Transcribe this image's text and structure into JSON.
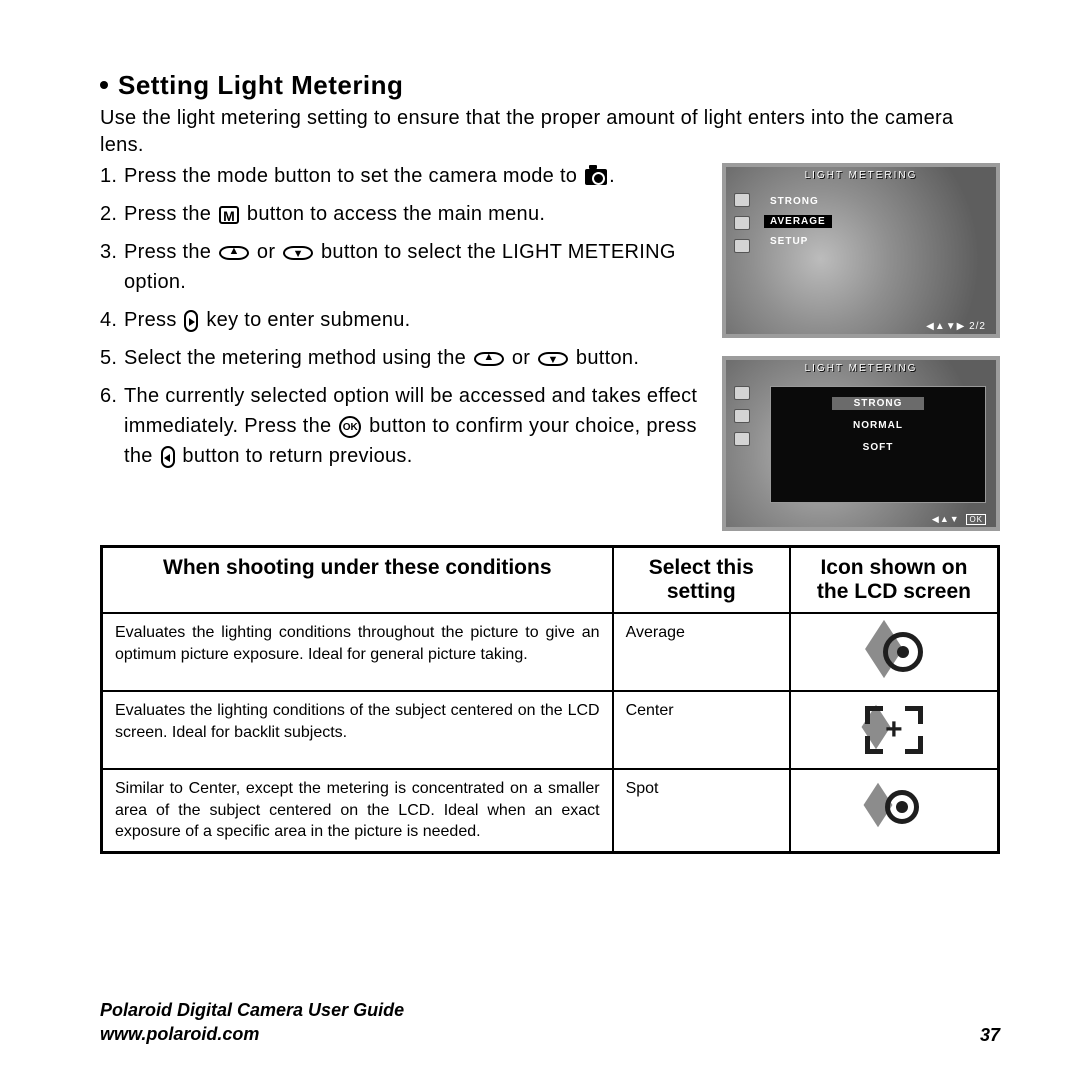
{
  "heading": "Setting Light Metering",
  "intro": "Use the light metering setting to ensure that the proper amount of light enters into the camera lens.",
  "steps": {
    "s1a": "Press the mode button to set the camera mode to ",
    "s1b": ".",
    "s2a": "Press the ",
    "s2b": " button to access the main menu.",
    "s3a": "Press the ",
    "s3b": " or ",
    "s3c": " button to select the LIGHT METERING option.",
    "s4a": "Press ",
    "s4b": " key to enter submenu.",
    "s5a": "Select the metering method using the ",
    "s5b": " or ",
    "s5c": " button.",
    "s6a": "The currently selected option will be accessed and takes effect immediately. Press the ",
    "s6b": " button to confirm your choice, press the ",
    "s6c": " button to return previous."
  },
  "table": {
    "headers": {
      "c1": "When shooting under these conditions",
      "c2": "Select this setting",
      "c3": "Icon shown on the LCD screen"
    },
    "rows": [
      {
        "cond": "Evaluates the lighting conditions throughout the picture to give an optimum picture exposure. Ideal for general picture taking.",
        "setting": "Average",
        "icon": "average"
      },
      {
        "cond": "Evaluates the lighting conditions of the subject centered on the LCD screen. Ideal for backlit subjects.",
        "setting": "Center",
        "icon": "center"
      },
      {
        "cond": "Similar to Center, except the metering is concentrated on a smaller area of the subject centered on the LCD. Ideal when an exact exposure of a specific area in the picture is needed.",
        "setting": "Spot",
        "icon": "spot"
      }
    ]
  },
  "lcd1": {
    "title": "LIGHT METERING",
    "items": [
      "STRONG",
      "AVERAGE",
      "SETUP"
    ],
    "selected": 1,
    "foot": "◀▲▼▶ 2/2"
  },
  "lcd2": {
    "title": "LIGHT METERING",
    "items": [
      "STRONG",
      "NORMAL",
      "SOFT"
    ],
    "selected": 0,
    "foot_left": "◀▲▼",
    "foot_ok": "OK"
  },
  "footer": {
    "guide": "Polaroid Digital Camera User Guide",
    "url": "www.polaroid.com",
    "page": "37"
  },
  "colors": {
    "text": "#000000",
    "lcd_border": "#9c9c9c",
    "lcd_bg_dark": "#0a0a0a",
    "icon_gray": "#8c8c8c",
    "icon_dark": "#1e1e1e"
  },
  "icon_labels": {
    "m": "M",
    "ok": "OK"
  }
}
